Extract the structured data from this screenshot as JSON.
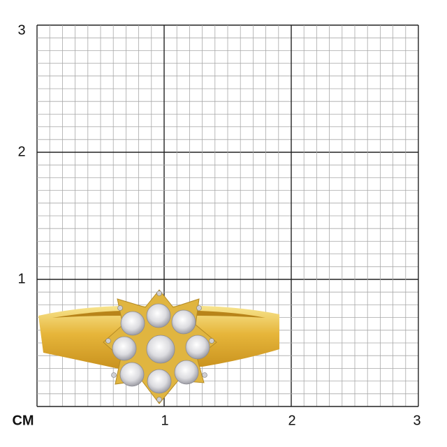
{
  "scale": {
    "unit_label": "CM",
    "y_labels": [
      "3",
      "2",
      "1"
    ],
    "x_labels": [
      "1",
      "2",
      "3"
    ],
    "range_cm": [
      0,
      3
    ],
    "minor_divisions_per_cm": 10
  },
  "product": {
    "image": "gold-ring-with-diamond-flower-cluster",
    "colors": {
      "gold": "#e3b63a",
      "gold_light": "#f6e08a",
      "diamond": "#e8e8ec",
      "prong": "#cfcfd4"
    }
  }
}
